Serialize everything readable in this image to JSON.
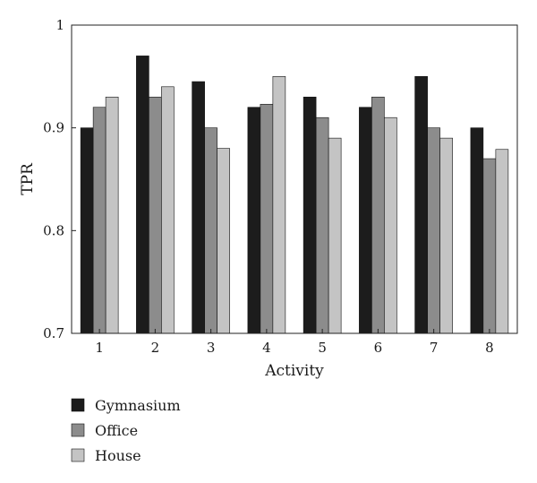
{
  "chart_data": {
    "type": "bar",
    "title": "",
    "xlabel": "Activity",
    "ylabel": "TPR",
    "ylim": [
      0.7,
      1.0
    ],
    "yticks": [
      0.7,
      0.8,
      0.9,
      1.0
    ],
    "ytick_labels": [
      "0.7",
      "0.8",
      "0.9",
      "1"
    ],
    "grid": false,
    "legend_position": "below-left",
    "categories": [
      "1",
      "2",
      "3",
      "4",
      "5",
      "6",
      "7",
      "8"
    ],
    "series": [
      {
        "name": "Gymnasium",
        "color": "#1c1c1c",
        "values": [
          0.9,
          0.97,
          0.945,
          0.92,
          0.93,
          0.92,
          0.95,
          0.9
        ]
      },
      {
        "name": "Office",
        "color": "#8c8c8c",
        "values": [
          0.92,
          0.93,
          0.9,
          0.923,
          0.91,
          0.93,
          0.9,
          0.87
        ]
      },
      {
        "name": "House",
        "color": "#c4c4c4",
        "values": [
          0.93,
          0.94,
          0.88,
          0.95,
          0.89,
          0.91,
          0.89,
          0.879
        ]
      }
    ]
  }
}
